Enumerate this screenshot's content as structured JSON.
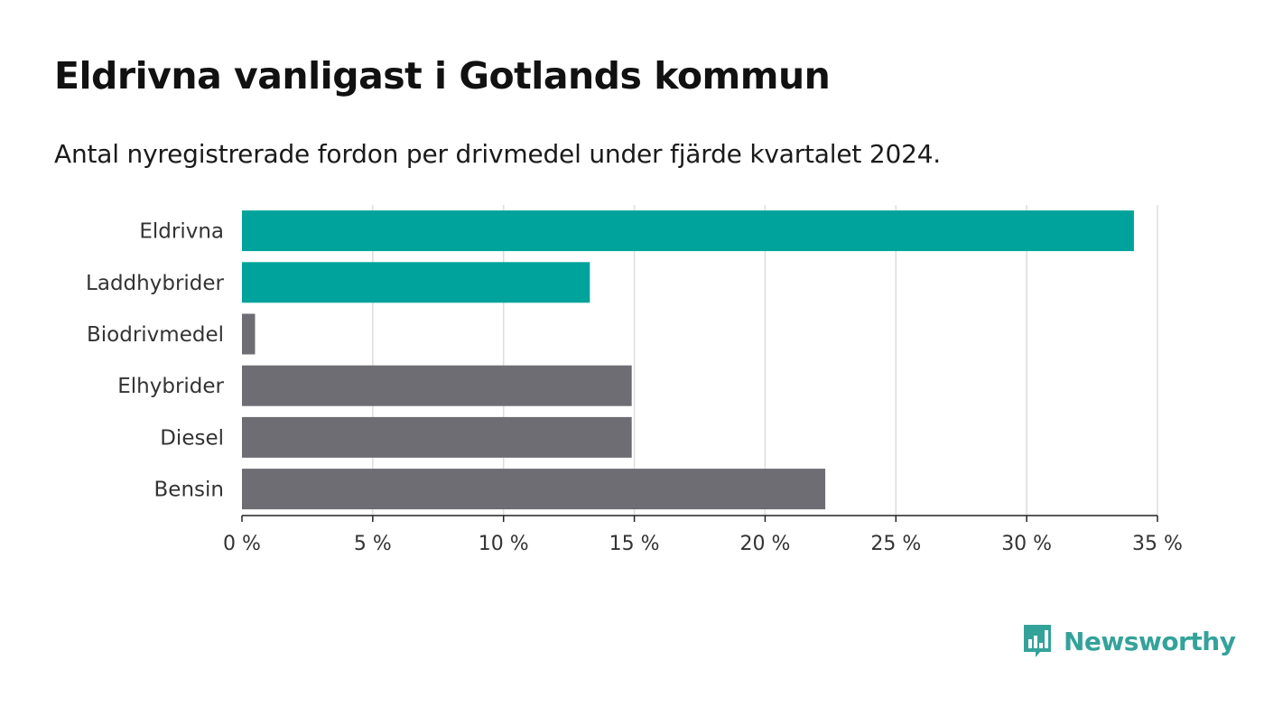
{
  "title": "Eldrivna vanligast i Gotlands kommun",
  "subtitle": "Antal nyregistrerade fordon per drivmedel under fjärde kvartalet 2024.",
  "logo": {
    "text": "Newsworthy",
    "icon": "bar-chart-speech-bubble-icon",
    "color": "#33a39a"
  },
  "chart_data": {
    "type": "bar",
    "orientation": "horizontal",
    "categories": [
      "Eldrivna",
      "Laddhybrider",
      "Biodrivmedel",
      "Elhybrider",
      "Diesel",
      "Bensin"
    ],
    "values": [
      34.1,
      13.3,
      0.5,
      14.9,
      14.9,
      22.3
    ],
    "colors": [
      "#00a39b",
      "#00a39b",
      "#6e6d73",
      "#6e6d73",
      "#6e6d73",
      "#6e6d73"
    ],
    "xlim": [
      0,
      35
    ],
    "xticks": [
      0,
      5,
      10,
      15,
      20,
      25,
      30,
      35
    ],
    "tick_labels": [
      "0 %",
      "5 %",
      "10 %",
      "15 %",
      "20 %",
      "25 %",
      "30 %",
      "35 %"
    ],
    "xlabel": "",
    "ylabel": "",
    "grid": true
  }
}
